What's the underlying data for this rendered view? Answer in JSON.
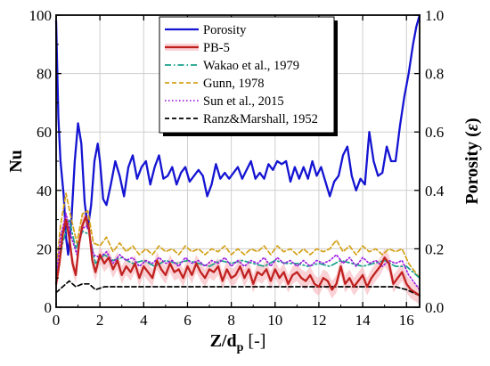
{
  "chart_data": {
    "type": "line",
    "title": "",
    "xlabel": {
      "main": "Z/d",
      "sub": "p",
      "unit": " [-]"
    },
    "ylabel_left": "Nu",
    "ylabel_right": {
      "text": "Porosity (",
      "symbol": "ε",
      "close": ")"
    },
    "xlim": [
      0,
      16.6
    ],
    "ylim_left": [
      0,
      100
    ],
    "ylim_right": [
      0,
      1.0
    ],
    "x_ticks": [
      "0",
      "2",
      "4",
      "6",
      "8",
      "10",
      "12",
      "14",
      "16"
    ],
    "y_ticks_left": [
      "0",
      "20",
      "40",
      "60",
      "80",
      "100"
    ],
    "y_ticks_right": [
      "0.0",
      "0.2",
      "0.4",
      "0.6",
      "0.8",
      "1.0"
    ],
    "grid": true,
    "legend_position": "top-center",
    "series": [
      {
        "name": "Porosity",
        "axis": "right",
        "color": "#1414d2",
        "dash": "solid",
        "x": [
          0,
          0.1,
          0.2,
          0.35,
          0.45,
          0.55,
          0.7,
          0.85,
          1.0,
          1.15,
          1.3,
          1.45,
          1.6,
          1.75,
          1.9,
          2.0,
          2.15,
          2.3,
          2.5,
          2.7,
          2.9,
          3.1,
          3.3,
          3.5,
          3.7,
          3.9,
          4.1,
          4.3,
          4.5,
          4.7,
          4.9,
          5.1,
          5.3,
          5.5,
          5.7,
          5.9,
          6.1,
          6.3,
          6.5,
          6.7,
          6.9,
          7.1,
          7.3,
          7.5,
          7.7,
          7.9,
          8.1,
          8.3,
          8.5,
          8.7,
          8.9,
          9.1,
          9.3,
          9.5,
          9.7,
          9.9,
          10.1,
          10.3,
          10.5,
          10.7,
          10.9,
          11.1,
          11.3,
          11.5,
          11.7,
          11.9,
          12.1,
          12.3,
          12.5,
          12.7,
          12.9,
          13.1,
          13.3,
          13.5,
          13.7,
          13.9,
          14.1,
          14.3,
          14.5,
          14.7,
          14.9,
          15.1,
          15.3,
          15.5,
          15.7,
          15.9,
          16.1,
          16.3,
          16.45,
          16.6
        ],
        "y": [
          0.98,
          0.65,
          0.5,
          0.38,
          0.24,
          0.18,
          0.3,
          0.5,
          0.63,
          0.56,
          0.36,
          0.27,
          0.35,
          0.5,
          0.56,
          0.5,
          0.37,
          0.35,
          0.42,
          0.5,
          0.45,
          0.38,
          0.48,
          0.52,
          0.44,
          0.48,
          0.5,
          0.42,
          0.48,
          0.52,
          0.44,
          0.45,
          0.48,
          0.42,
          0.46,
          0.48,
          0.43,
          0.45,
          0.47,
          0.45,
          0.38,
          0.42,
          0.49,
          0.44,
          0.46,
          0.44,
          0.46,
          0.48,
          0.44,
          0.47,
          0.5,
          0.44,
          0.46,
          0.44,
          0.49,
          0.47,
          0.5,
          0.49,
          0.5,
          0.43,
          0.48,
          0.44,
          0.48,
          0.44,
          0.5,
          0.45,
          0.48,
          0.43,
          0.38,
          0.43,
          0.45,
          0.52,
          0.55,
          0.45,
          0.4,
          0.44,
          0.42,
          0.6,
          0.5,
          0.45,
          0.46,
          0.55,
          0.5,
          0.5,
          0.62,
          0.72,
          0.8,
          0.9,
          0.96,
          1.0
        ]
      },
      {
        "name": "PB-5",
        "axis": "left",
        "color": "#c0211f",
        "dash": "solid",
        "x": [
          0,
          0.15,
          0.3,
          0.45,
          0.6,
          0.75,
          0.9,
          1.05,
          1.2,
          1.35,
          1.5,
          1.65,
          1.8,
          2.0,
          2.2,
          2.4,
          2.6,
          2.8,
          3.0,
          3.2,
          3.4,
          3.6,
          3.8,
          4.0,
          4.2,
          4.4,
          4.6,
          4.8,
          5.0,
          5.2,
          5.4,
          5.6,
          5.8,
          6.0,
          6.2,
          6.4,
          6.6,
          6.8,
          7.0,
          7.2,
          7.4,
          7.6,
          7.8,
          8.0,
          8.2,
          8.4,
          8.6,
          8.8,
          9.0,
          9.2,
          9.4,
          9.6,
          9.8,
          10.0,
          10.2,
          10.4,
          10.6,
          10.8,
          11.0,
          11.2,
          11.4,
          11.6,
          11.8,
          12.0,
          12.2,
          12.4,
          12.6,
          12.8,
          13.0,
          13.2,
          13.4,
          13.6,
          13.8,
          14.0,
          14.2,
          14.4,
          14.6,
          14.8,
          15.0,
          15.2,
          15.4,
          15.6,
          15.8,
          16.0,
          16.2,
          16.4,
          16.6
        ],
        "y": [
          8,
          15,
          25,
          30,
          24,
          15,
          11,
          22,
          28,
          31,
          27,
          16,
          12,
          18,
          15,
          17,
          13,
          16,
          11,
          14,
          12,
          15,
          10,
          14,
          12,
          10,
          16,
          13,
          11,
          15,
          12,
          13,
          10,
          14,
          11,
          15,
          12,
          10,
          13,
          12,
          14,
          9,
          13,
          10,
          11,
          14,
          10,
          13,
          8,
          12,
          11,
          13,
          9,
          13,
          10,
          12,
          8,
          11,
          12,
          10,
          9,
          11,
          8,
          7,
          10,
          9,
          6,
          8,
          14,
          8,
          10,
          7,
          9,
          11,
          7,
          10,
          12,
          14,
          17,
          15,
          8,
          10,
          12,
          8,
          6,
          5,
          4
        ]
      },
      {
        "name": "Wakao et al., 1979",
        "axis": "left",
        "color": "#19a08c",
        "dash": "dashdot",
        "x": [
          0,
          0.3,
          0.6,
          0.9,
          1.2,
          1.5,
          1.8,
          2.2,
          2.6,
          3.0,
          3.5,
          4.0,
          4.5,
          5.0,
          5.5,
          6.0,
          6.5,
          7.0,
          7.5,
          8.0,
          8.5,
          9.0,
          9.5,
          10.0,
          10.5,
          11.0,
          11.5,
          12.0,
          12.5,
          13.0,
          13.5,
          14.0,
          14.5,
          15.0,
          15.5,
          16.0,
          16.3,
          16.6
        ],
        "y": [
          10,
          22,
          30,
          20,
          26,
          25,
          15,
          18,
          16,
          17,
          15,
          16,
          14,
          16,
          15,
          16,
          15,
          14,
          16,
          15,
          16,
          15,
          14,
          16,
          15,
          15,
          14,
          15,
          14,
          16,
          15,
          14,
          15,
          16,
          14,
          14,
          12,
          10
        ]
      },
      {
        "name": "Gunn, 1978",
        "axis": "left",
        "color": "#d4a017",
        "dash": "dash",
        "x": [
          0,
          0.2,
          0.45,
          0.7,
          0.95,
          1.2,
          1.45,
          1.7,
          2.0,
          2.3,
          2.6,
          2.9,
          3.2,
          3.5,
          3.8,
          4.1,
          4.4,
          4.7,
          5.0,
          5.3,
          5.6,
          5.9,
          6.2,
          6.5,
          6.8,
          7.1,
          7.4,
          7.7,
          8.0,
          8.3,
          8.6,
          8.9,
          9.2,
          9.5,
          9.8,
          10.1,
          10.4,
          10.7,
          11.0,
          11.3,
          11.6,
          11.9,
          12.2,
          12.5,
          12.8,
          13.1,
          13.4,
          13.7,
          14.0,
          14.3,
          14.6,
          14.9,
          15.2,
          15.5,
          15.8,
          16.1,
          16.4,
          16.6
        ],
        "y": [
          12,
          28,
          39,
          30,
          22,
          32,
          33,
          22,
          21,
          24,
          19,
          22,
          19,
          21,
          18,
          20,
          18,
          21,
          19,
          20,
          18,
          21,
          19,
          20,
          18,
          20,
          19,
          21,
          18,
          20,
          18,
          20,
          19,
          21,
          18,
          21,
          19,
          20,
          18,
          20,
          18,
          20,
          19,
          20,
          23,
          19,
          21,
          18,
          21,
          19,
          20,
          18,
          20,
          19,
          20,
          15,
          12,
          10
        ]
      },
      {
        "name": "Sun et al., 2015",
        "axis": "left",
        "color": "#a020e0",
        "dash": "dot",
        "x": [
          0,
          0.2,
          0.45,
          0.7,
          0.95,
          1.2,
          1.45,
          1.7,
          2.0,
          2.3,
          2.6,
          2.9,
          3.2,
          3.5,
          3.8,
          4.1,
          4.4,
          4.7,
          5.0,
          5.3,
          5.6,
          5.9,
          6.2,
          6.5,
          6.8,
          7.1,
          7.4,
          7.7,
          8.0,
          8.3,
          8.6,
          8.9,
          9.2,
          9.5,
          9.8,
          10.1,
          10.4,
          10.7,
          11.0,
          11.3,
          11.6,
          11.9,
          12.2,
          12.5,
          12.8,
          13.1,
          13.4,
          13.7,
          14.0,
          14.3,
          14.6,
          14.9,
          15.2,
          15.5,
          15.8,
          16.1,
          16.4,
          16.6
        ],
        "y": [
          10,
          24,
          32,
          24,
          18,
          27,
          28,
          18,
          17,
          19,
          15,
          18,
          16,
          17,
          14,
          16,
          15,
          17,
          15,
          16,
          14,
          17,
          15,
          16,
          14,
          16,
          15,
          17,
          14,
          16,
          14,
          16,
          15,
          17,
          14,
          17,
          15,
          16,
          14,
          16,
          14,
          16,
          15,
          16,
          18,
          15,
          17,
          14,
          17,
          15,
          16,
          14,
          16,
          15,
          16,
          11,
          8,
          6
        ]
      },
      {
        "name": "Ranz&Marshall, 1952",
        "axis": "left",
        "color": "#000000",
        "dash": "dash",
        "x": [
          0,
          0.3,
          0.6,
          0.9,
          1.2,
          1.5,
          1.8,
          2.2,
          2.6,
          3.0,
          3.5,
          4.0,
          4.5,
          5.0,
          5.5,
          6.0,
          6.5,
          7.0,
          7.5,
          8.0,
          8.5,
          9.0,
          9.5,
          10.0,
          10.5,
          11.0,
          11.5,
          12.0,
          12.5,
          13.0,
          13.5,
          14.0,
          14.5,
          15.0,
          15.5,
          16.0,
          16.3,
          16.6
        ],
        "y": [
          5,
          7,
          9,
          7,
          8,
          8,
          6,
          7,
          7,
          7,
          7,
          7,
          7,
          7,
          7,
          7,
          7,
          7,
          7,
          7,
          7,
          7,
          7,
          7,
          7,
          7,
          7,
          7,
          7,
          7,
          7,
          7,
          7,
          7,
          7,
          6,
          5,
          4
        ]
      }
    ]
  }
}
